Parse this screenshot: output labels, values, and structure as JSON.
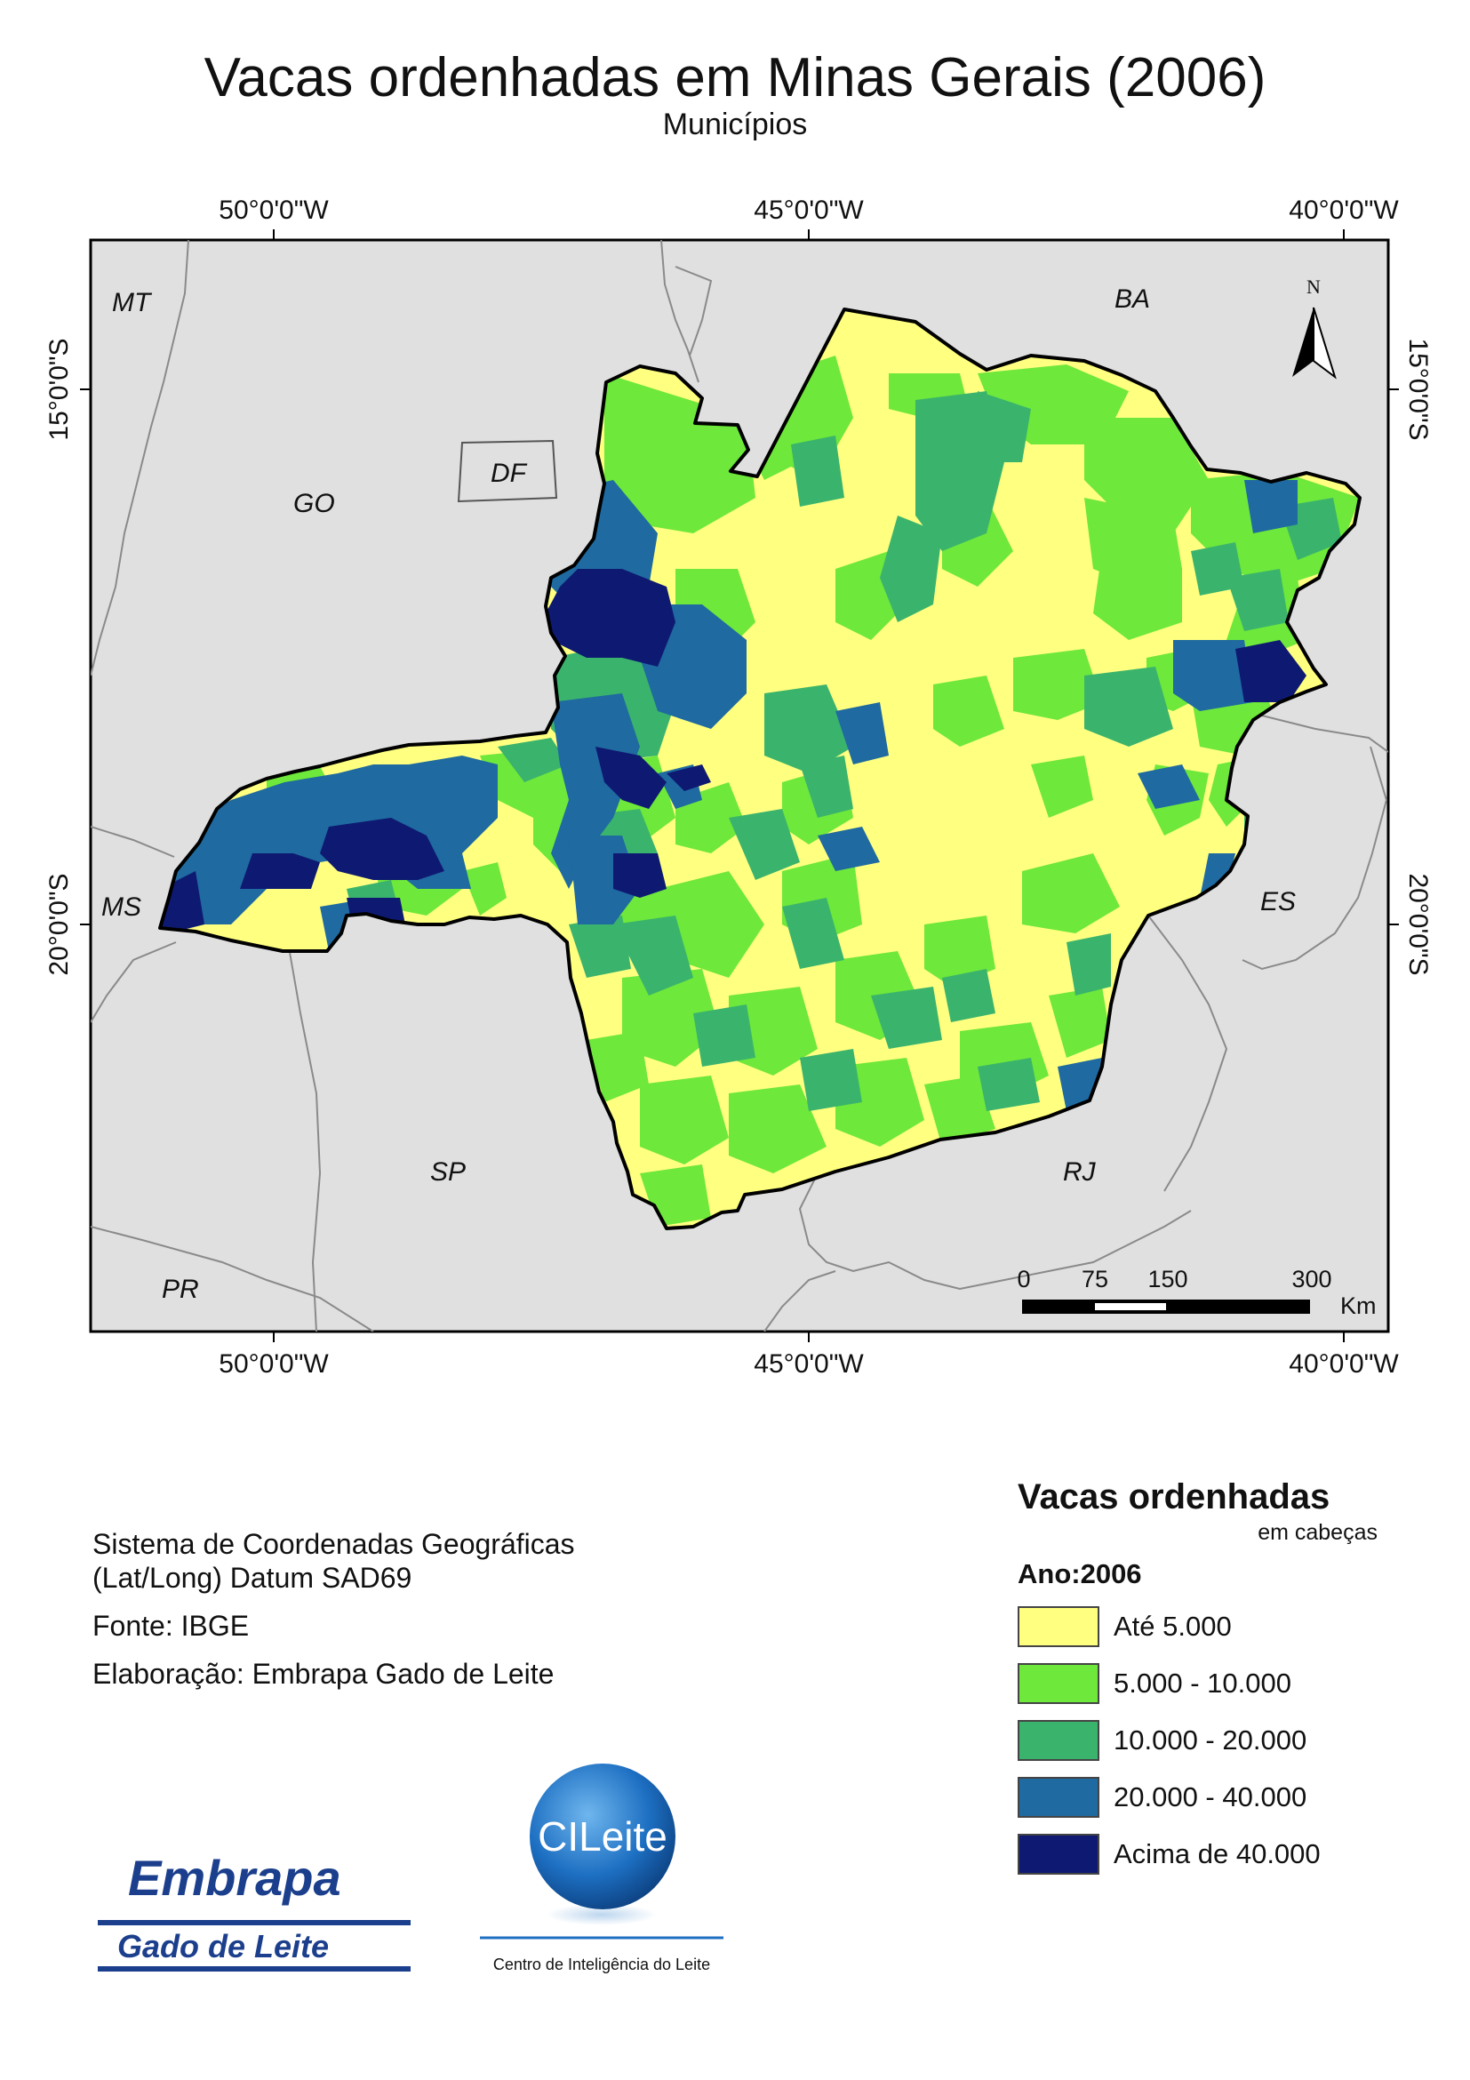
{
  "map": {
    "title": "Vacas ordenhadas em Minas Gerais (2006)",
    "subtitle": "Municípios",
    "graticule": {
      "top_longitudes": [
        "50°0'0\"W",
        "45°0'0\"W",
        "40°0'0\"W"
      ],
      "bottom_longitudes": [
        "50°0'0\"W",
        "45°0'0\"W",
        "40°0'0\"W"
      ],
      "left_latitudes": [
        "15°0'0\"S",
        "20°0'0\"S"
      ],
      "right_latitudes": [
        "15°0'0\"S",
        "20°0'0\"S"
      ]
    },
    "state_labels": {
      "MT": "MT",
      "BA": "BA",
      "GO": "GO",
      "DF": "DF",
      "MS": "MS",
      "ES": "ES",
      "SP": "SP",
      "RJ": "RJ",
      "PR": "PR"
    },
    "north_arrow_label": "N",
    "scale_bar": {
      "ticks": [
        "0",
        "75",
        "150",
        "300"
      ],
      "unit": "Km"
    },
    "colors": {
      "neighbor_fill": "#e0e0e0",
      "class_1": "#ffff80",
      "class_2": "#6ee83a",
      "class_3": "#3ab46c",
      "class_4": "#1f6aa0",
      "class_5": "#0e1a72"
    }
  },
  "credits": {
    "line1": "Sistema de Coordenadas Geográficas",
    "line2": "(Lat/Long) Datum SAD69",
    "source": "Fonte: IBGE",
    "author": "Elaboração: Embrapa Gado de Leite"
  },
  "legend": {
    "title": "Vacas ordenhadas",
    "unit": "em cabeças",
    "year": "Ano:2006",
    "items": [
      {
        "label": "Até 5.000",
        "color": "#ffff80"
      },
      {
        "label": "5.000 - 10.000",
        "color": "#6ee83a"
      },
      {
        "label": "10.000 - 20.000",
        "color": "#3ab46c"
      },
      {
        "label": "20.000 - 40.000",
        "color": "#1f6aa0"
      },
      {
        "label": "Acima de 40.000",
        "color": "#0e1a72"
      }
    ]
  },
  "logos": {
    "embrapa_name": "Embrapa",
    "embrapa_unit": "Gado de Leite",
    "cileite_name": "CILeite",
    "cileite_caption": "Centro de Inteligência do Leite"
  }
}
